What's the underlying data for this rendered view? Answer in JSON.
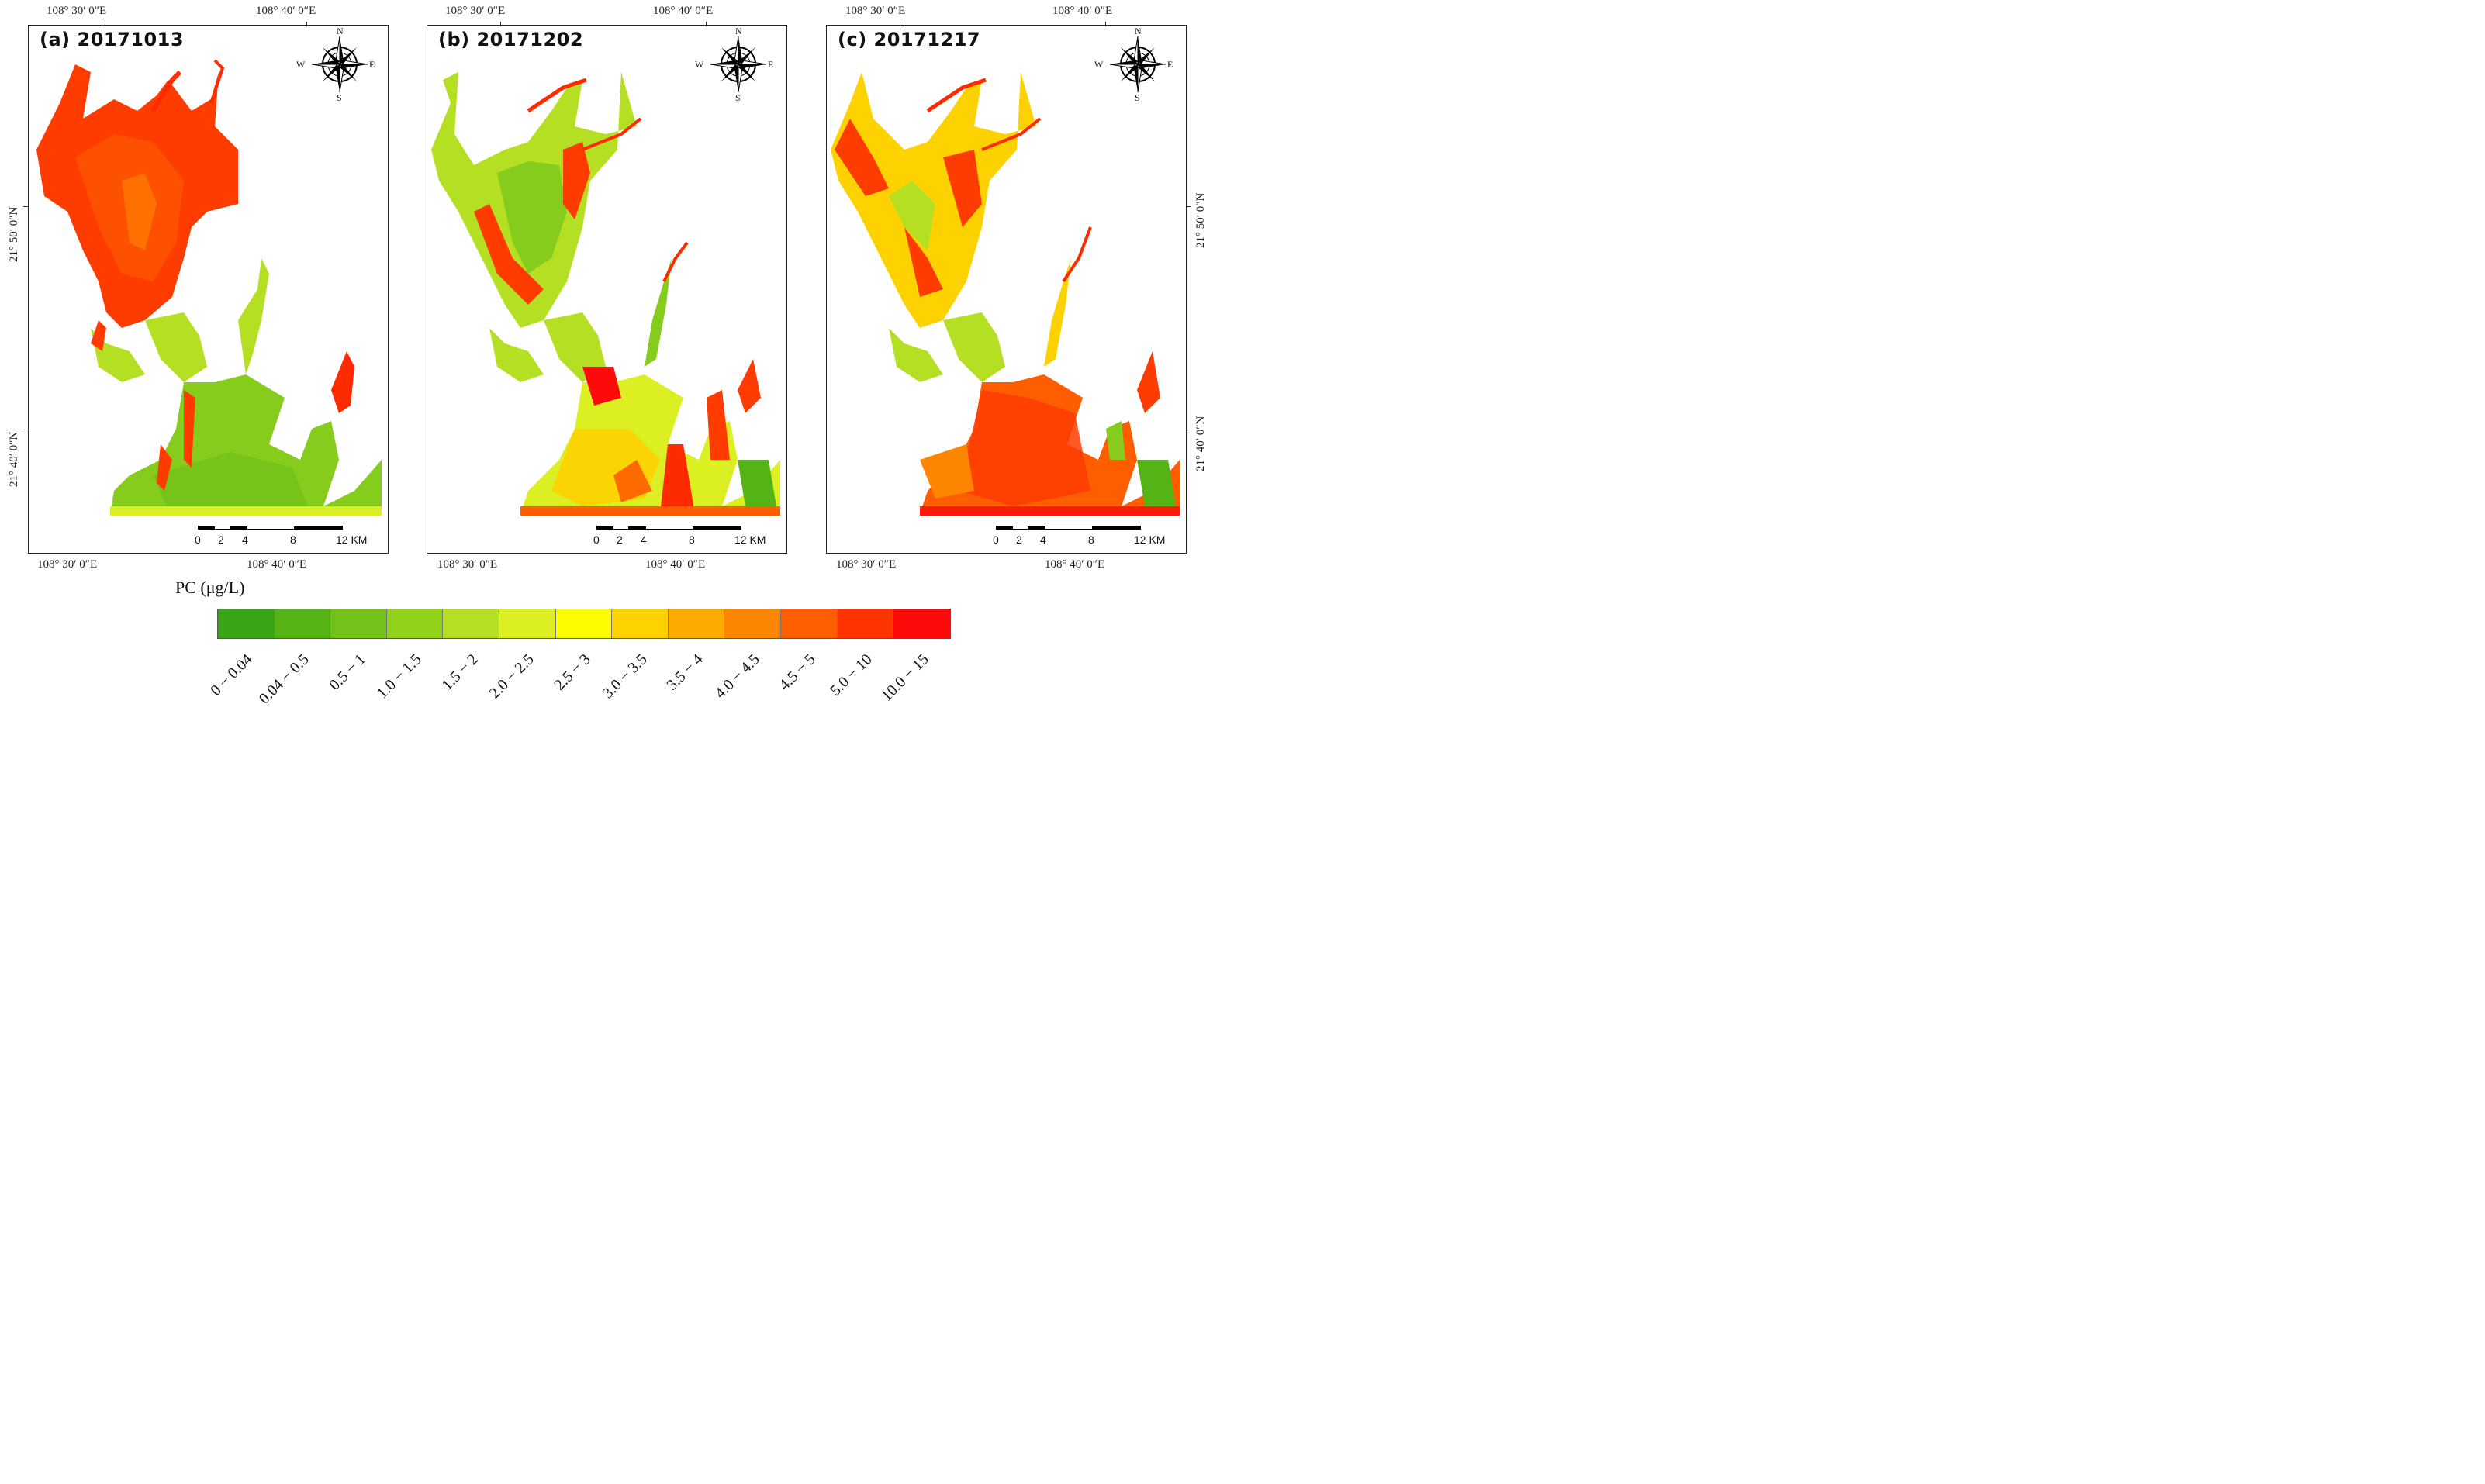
{
  "coords": {
    "lon1": "108° 30′ 0″E",
    "lon2": "108° 40′ 0″E",
    "lat1": "21° 50′ 0″N",
    "lat2": "21° 40′ 0″N"
  },
  "panels": [
    {
      "label": "(a) 20171013",
      "scheme": "a"
    },
    {
      "label": "(b) 20171202",
      "scheme": "b"
    },
    {
      "label": "(c) 20171217",
      "scheme": "c"
    }
  ],
  "compass": {
    "n": "N",
    "s": "S",
    "e": "E",
    "w": "W"
  },
  "scalebar": {
    "labels": [
      "0",
      "2",
      "4",
      "8",
      "12 KM"
    ]
  },
  "legend": {
    "title": "PC (μg/L)",
    "classes": [
      {
        "label": "0 − 0.04",
        "color": "#3aa516"
      },
      {
        "label": "0.04 − 0.5",
        "color": "#56b316"
      },
      {
        "label": "0.5 − 1",
        "color": "#72c21a"
      },
      {
        "label": "1.0 − 1.5",
        "color": "#92d11c"
      },
      {
        "label": "1.5 − 2",
        "color": "#b5df22"
      },
      {
        "label": "2.0 − 2.5",
        "color": "#dbef22"
      },
      {
        "label": "2.5 − 3",
        "color": "#fdfd00"
      },
      {
        "label": "3.0 − 3.5",
        "color": "#fed200"
      },
      {
        "label": "3.5 − 4",
        "color": "#feab00"
      },
      {
        "label": "4.0 − 4.5",
        "color": "#fe8500"
      },
      {
        "label": "4.5 − 5",
        "color": "#fe5d00"
      },
      {
        "label": "5.0 − 10",
        "color": "#fe3400"
      },
      {
        "label": "10.0 − 15",
        "color": "#fe0a0a"
      }
    ]
  }
}
